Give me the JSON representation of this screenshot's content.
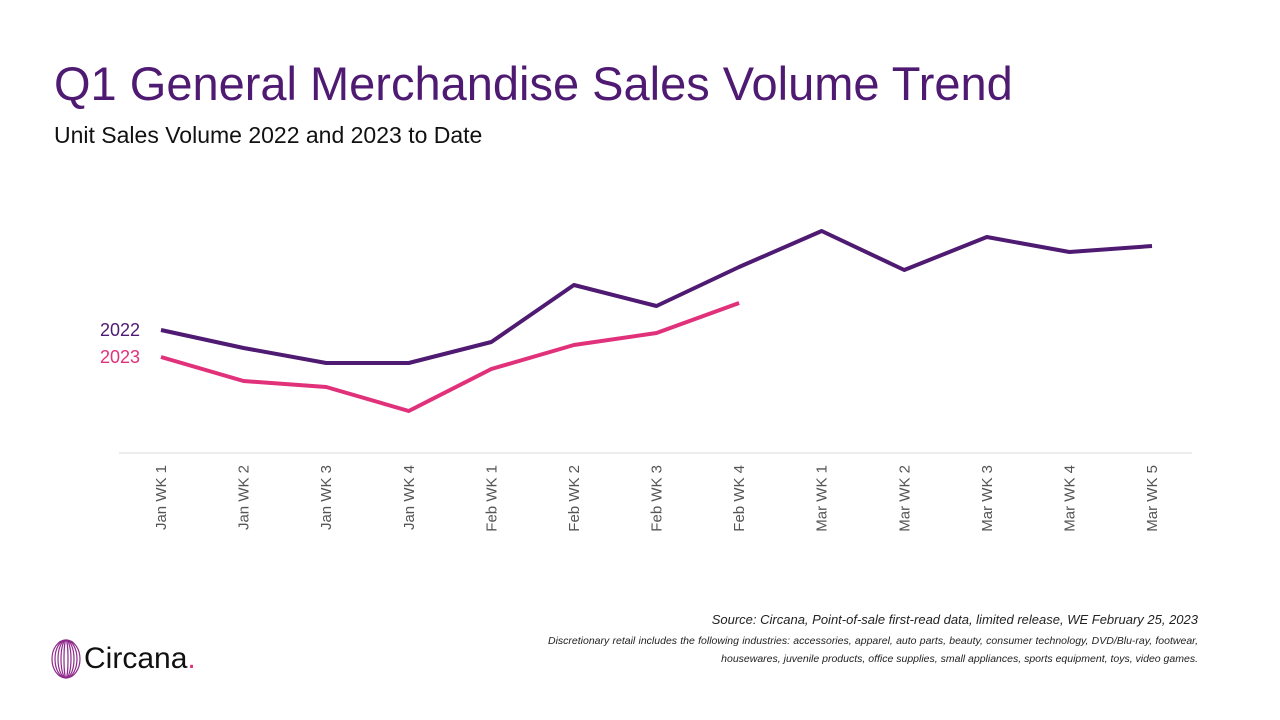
{
  "chart_data": {
    "type": "line",
    "title": "Q1 General Merchandise Sales Volume Trend",
    "subtitle": "Unit Sales Volume 2022 and 2023 to Date",
    "categories": [
      "Jan WK 1",
      "Jan WK 2",
      "Jan WK 3",
      "Jan WK 4",
      "Feb WK 1",
      "Feb WK 2",
      "Feb WK 3",
      "Feb WK 4",
      "Mar WK 1",
      "Mar WK 2",
      "Mar WK 3",
      "Mar WK 4",
      "Mar WK 5"
    ],
    "series": [
      {
        "name": "2022",
        "color": "#4f1a72",
        "values": [
          41,
          35,
          30,
          30,
          37,
          56,
          49,
          62,
          74,
          61,
          72,
          67,
          69
        ]
      },
      {
        "name": "2023",
        "color": "#e0317a",
        "values": [
          32,
          24,
          22,
          14,
          28,
          36,
          40,
          50,
          null,
          null,
          null,
          null,
          null
        ]
      }
    ],
    "ylim": [
      0,
      100
    ],
    "source": "Source: Circana, Point-of-sale first-read data, limited release, WE February 25, 2023",
    "note": "Discretionary retail includes the following industries: accessories, apparel, auto parts, beauty, consumer technology, DVD/Blu-ray, footwear, housewares, juvenile products, office supplies, small appliances, sports equipment, toys, video games.",
    "brand": "Circana"
  }
}
